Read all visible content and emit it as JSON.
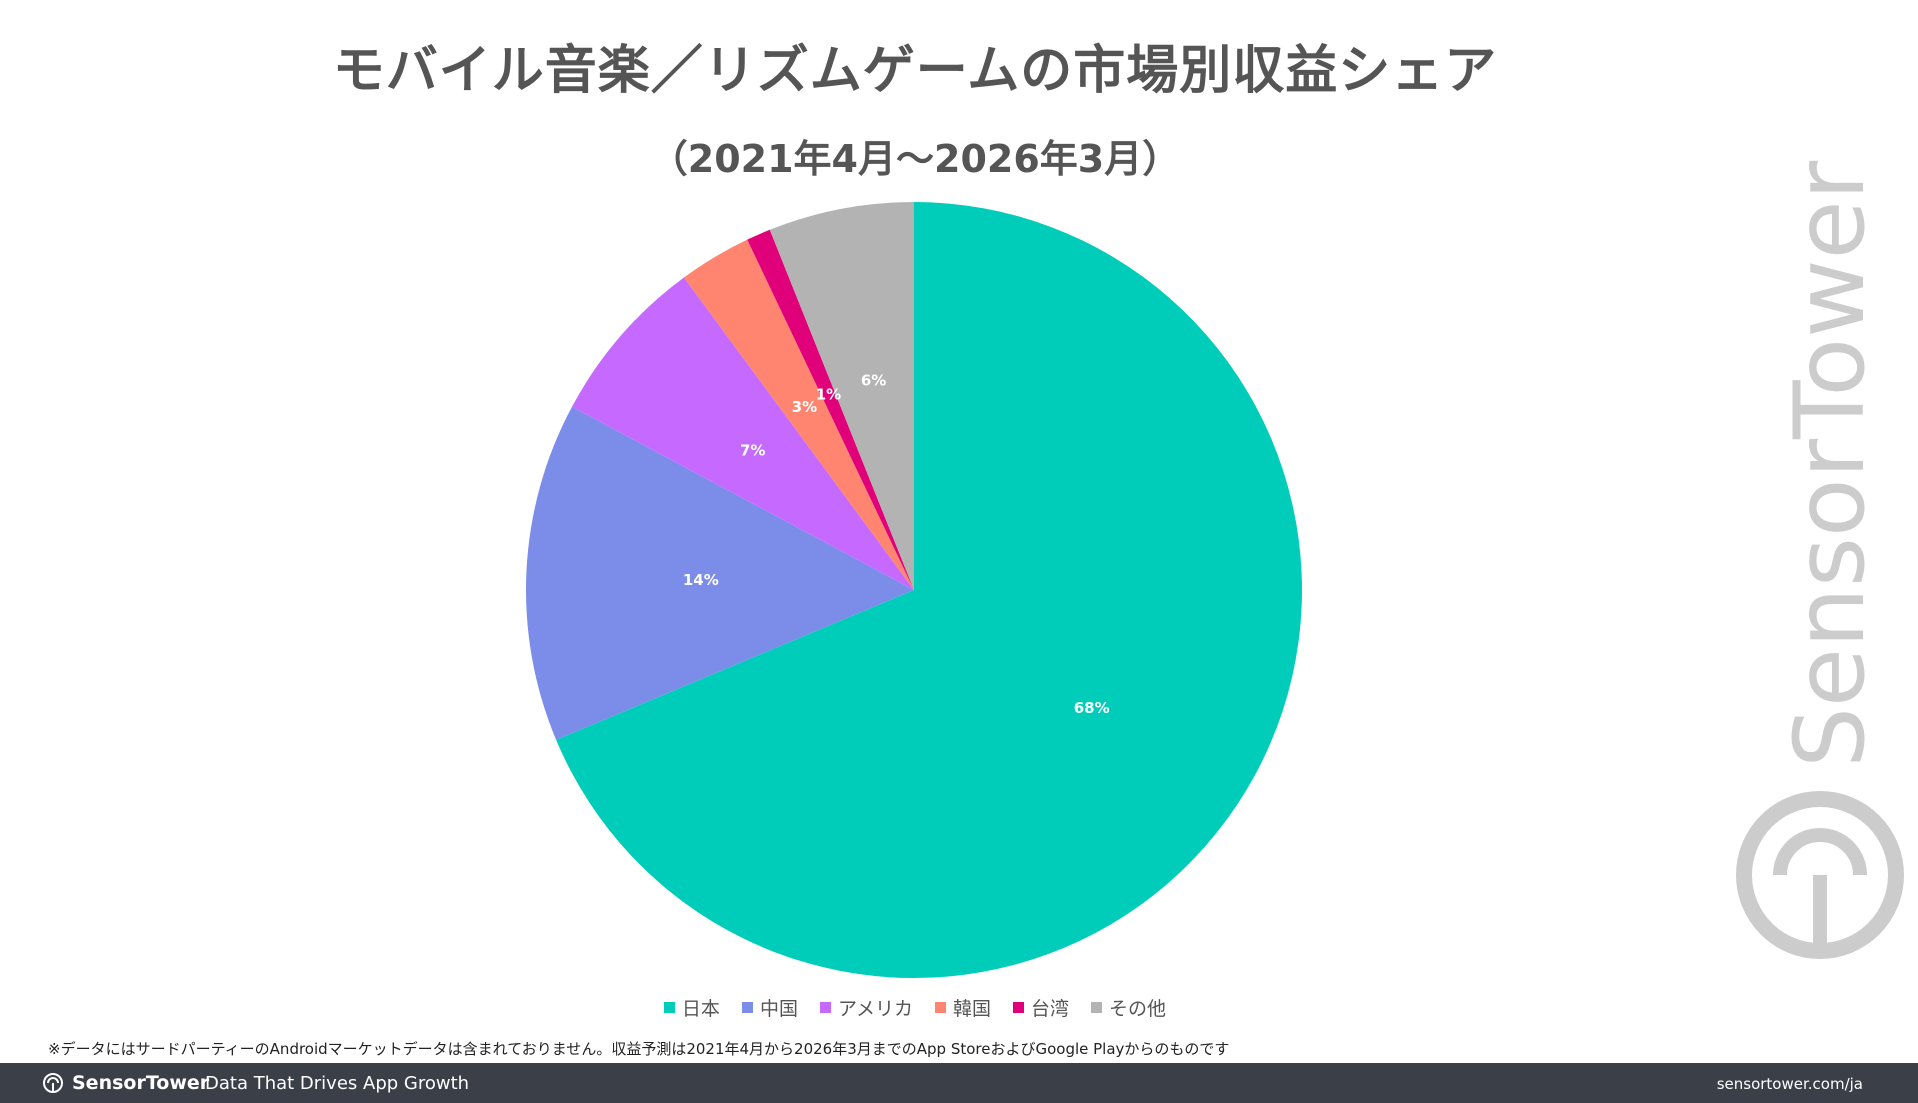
{
  "header": {
    "title": "モバイル音楽／リズムゲームの市場別収益シェア",
    "subtitle": "（2021年4月～2026年3月）"
  },
  "chart_data": {
    "type": "pie",
    "title": "モバイル音楽／リズムゲームの市場別収益シェア",
    "subtitle": "（2021年4月～2026年3月）",
    "categories": [
      "日本",
      "中国",
      "アメリカ",
      "韓国",
      "台湾",
      "その他"
    ],
    "values": [
      68,
      14,
      7,
      3,
      1,
      6
    ],
    "data_labels": [
      "68%",
      "14%",
      "7%",
      "3%",
      "1%",
      "6%"
    ],
    "colors": [
      "#00cdb9",
      "#7b8de8",
      "#c66aff",
      "#ff8570",
      "#e0007a",
      "#b3b3b3"
    ],
    "legend_position": "bottom",
    "start_angle": "12-o'clock",
    "direction": "clockwise"
  },
  "watermark": {
    "text": "SensorTower",
    "color": "#cccccc"
  },
  "footnote": "※データにはサードパーティーのAndroidマーケットデータは含まれておりません。収益予測は2021年4月から2026年3月までのApp StoreおよびGoogle Playからのものです",
  "footer": {
    "brand": "SensorTower",
    "tagline": "Data That Drives App Growth",
    "url": "sensortower.com/ja",
    "background": "#3b3f48"
  }
}
